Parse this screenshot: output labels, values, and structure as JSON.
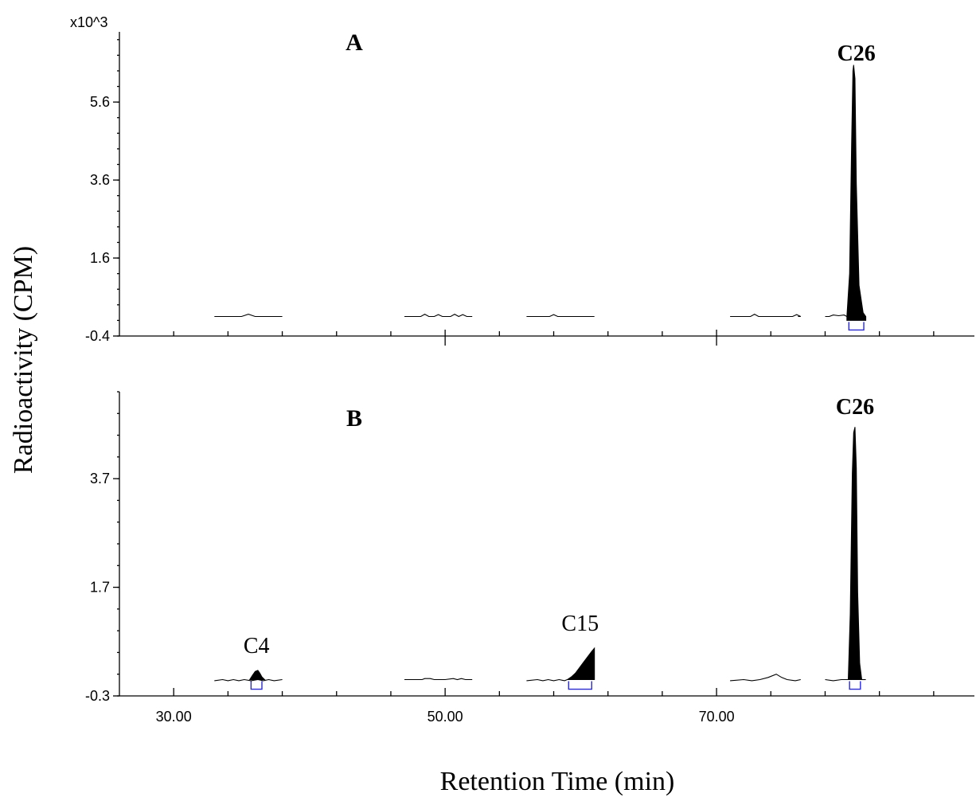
{
  "chart_data": [
    {
      "type": "line",
      "panel_label": "A",
      "y_multiplier": "x10^3",
      "xlim": [
        26,
        89
      ],
      "ylim": [
        -0.4,
        7.4
      ],
      "y_ticks": [
        -0.4,
        1.6,
        3.6,
        5.6
      ],
      "y_tick_labels": [
        "-0.4",
        "1.6",
        "3.6",
        "5.6"
      ],
      "x_major_ticks": [
        50,
        70
      ],
      "x_minor_ticks": [
        30,
        34,
        38,
        42,
        46,
        54,
        58,
        62,
        66,
        74,
        78,
        82,
        86
      ],
      "segments": [
        {
          "x": [
            33,
            35,
            35.5,
            36,
            38
          ],
          "y": [
            0.1,
            0.1,
            0.16,
            0.1,
            0.1
          ]
        },
        {
          "x": [
            47,
            48.2,
            48.5,
            48.8,
            49.2,
            49.5,
            49.8,
            50.4,
            50.7,
            51,
            51.3,
            51.6,
            52
          ],
          "y": [
            0.1,
            0.1,
            0.16,
            0.1,
            0.1,
            0.15,
            0.1,
            0.1,
            0.16,
            0.1,
            0.15,
            0.1,
            0.1
          ]
        },
        {
          "x": [
            56,
            57.7,
            58,
            58.3,
            61
          ],
          "y": [
            0.1,
            0.1,
            0.15,
            0.1,
            0.1
          ]
        },
        {
          "x": [
            71,
            72.5,
            72.8,
            73.1,
            75.6,
            75.9,
            76.2,
            76
          ],
          "y": [
            0.1,
            0.1,
            0.16,
            0.1,
            0.1,
            0.15,
            0.1,
            0.1
          ]
        },
        {
          "x": [
            78,
            78.3,
            78.6,
            79,
            79.4,
            79.6,
            81
          ],
          "y": [
            0.1,
            0.1,
            0.14,
            0.12,
            0.14,
            0.1,
            0.1
          ]
        }
      ],
      "peaks": [
        {
          "name": "C26",
          "label": "C26",
          "label_bold": true,
          "x": [
            79.6,
            79.8,
            79.95,
            80.05,
            80.1,
            80.2,
            80.3,
            80.5,
            80.8,
            81
          ],
          "y": [
            0.1,
            1.2,
            4.5,
            6.4,
            6.55,
            6.2,
            3.5,
            0.9,
            0.2,
            0.1
          ],
          "bracket": [
            79.75,
            80.85
          ]
        }
      ]
    },
    {
      "type": "line",
      "panel_label": "B",
      "xlim": [
        26,
        89
      ],
      "ylim": [
        -0.3,
        5.3
      ],
      "y_ticks": [
        -0.3,
        1.7,
        3.7
      ],
      "y_tick_labels": [
        "-0.3",
        "1.7",
        "3.7"
      ],
      "x_ticks": [
        30,
        50,
        70
      ],
      "x_tick_labels": [
        "30.00",
        "50.00",
        "70.00"
      ],
      "x_minor_ticks": [
        34,
        38,
        42,
        46,
        54,
        58,
        62,
        66,
        74,
        78,
        82,
        86
      ],
      "xlabel": "Retention Time (min)",
      "ylabel": "Radioactivity (CPM)",
      "segments": [
        {
          "x": [
            33,
            33.6,
            34,
            34.4,
            34.8,
            35.2,
            35.7,
            36.2,
            36.6,
            37,
            37.4,
            38
          ],
          "y": [
            -0.02,
            0.0,
            -0.02,
            0.0,
            -0.02,
            0.0,
            -0.02,
            0.0,
            -0.02,
            0.0,
            -0.02,
            0.0
          ]
        },
        {
          "x": [
            47,
            48.3,
            48.5,
            48.9,
            49.2,
            50,
            50.6,
            50.9,
            51.2,
            51.5,
            52
          ],
          "y": [
            0.0,
            0.0,
            0.02,
            0.02,
            0.0,
            0.0,
            0.02,
            0.0,
            0.02,
            0.0,
            0.0
          ]
        },
        {
          "x": [
            56,
            56.8,
            57.2,
            57.6,
            58,
            58.4,
            58.8,
            59
          ],
          "y": [
            -0.02,
            0.0,
            -0.02,
            0.0,
            -0.02,
            0.0,
            -0.02,
            0.0
          ]
        },
        {
          "x": [
            71,
            72,
            72.6,
            73.2,
            73.8,
            74.4,
            74.8,
            75.2,
            75.8,
            76.2
          ],
          "y": [
            -0.02,
            0.0,
            -0.02,
            0.0,
            0.04,
            0.1,
            0.04,
            0.0,
            -0.02,
            0.0
          ]
        },
        {
          "x": [
            78,
            78.6,
            79.2,
            79.7
          ],
          "y": [
            0.0,
            -0.02,
            0.0,
            0.0
          ]
        },
        {
          "x": [
            80.7,
            81
          ],
          "y": [
            0.0,
            0.0
          ]
        }
      ],
      "peaks": [
        {
          "name": "C4",
          "label": "C4",
          "label_bold": false,
          "x": [
            35.6,
            35.8,
            36,
            36.2,
            36.35,
            36.5,
            36.7
          ],
          "y": [
            0.0,
            0.08,
            0.15,
            0.17,
            0.12,
            0.05,
            0.0
          ],
          "bracket": [
            35.7,
            36.5
          ]
        },
        {
          "name": "C15",
          "label": "C15",
          "label_bold": false,
          "x": [
            59,
            59.3,
            59.6,
            59.9,
            60.2,
            60.5,
            60.8,
            61,
            61
          ],
          "y": [
            0.0,
            0.05,
            0.12,
            0.22,
            0.32,
            0.42,
            0.52,
            0.58,
            0.0
          ],
          "bracket": [
            59.1,
            60.8
          ]
        },
        {
          "name": "C26",
          "label": "C26",
          "label_bold": true,
          "x": [
            79.7,
            79.85,
            80,
            80.1,
            80.2,
            80.3,
            80.4,
            80.55,
            80.7
          ],
          "y": [
            0.0,
            1.2,
            3.8,
            4.55,
            4.65,
            3.9,
            1.6,
            0.3,
            0.0
          ],
          "bracket": [
            79.8,
            80.6
          ]
        }
      ]
    }
  ]
}
